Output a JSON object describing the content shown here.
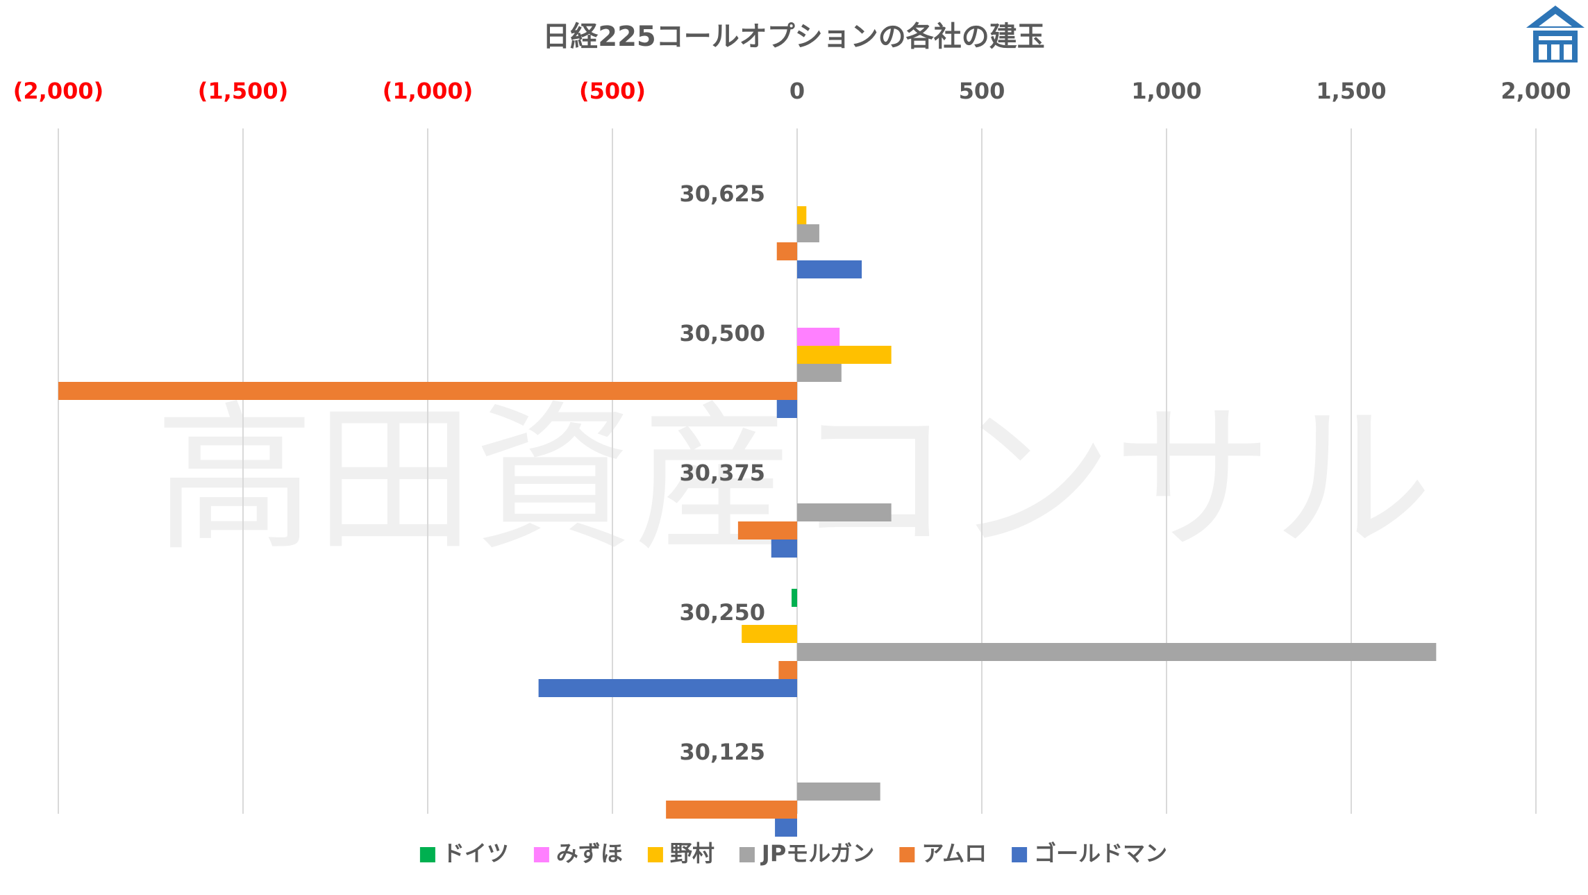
{
  "chart_data": {
    "type": "bar",
    "orientation": "horizontal",
    "title": "日経225コールオプションの各社の建玉",
    "watermark": "高田資産コンサル",
    "xlim": [
      -2000,
      2000
    ],
    "x_ticks": [
      -2000,
      -1500,
      -1000,
      -500,
      0,
      500,
      1000,
      1500,
      2000
    ],
    "x_tick_labels": [
      "(2,000)",
      "(1,500)",
      "(1,000)",
      "(500)",
      "0",
      "500",
      "1,000",
      "1,500",
      "2,000"
    ],
    "grid": true,
    "legend_position": "bottom",
    "categories": [
      "30,625",
      "30,500",
      "30,375",
      "30,250",
      "30,125"
    ],
    "series": [
      {
        "name": "ドイツ",
        "color": "#00B050",
        "values": [
          0,
          0,
          0,
          -15,
          0
        ]
      },
      {
        "name": "みずほ",
        "color": "#FF80FF",
        "values": [
          0,
          115,
          0,
          0,
          0
        ]
      },
      {
        "name": "野村",
        "color": "#FFC000",
        "values": [
          25,
          255,
          0,
          -150,
          0
        ]
      },
      {
        "name": "JPモルガン",
        "color": "#A5A5A5",
        "values": [
          60,
          120,
          255,
          1730,
          225
        ]
      },
      {
        "name": "アムロ",
        "color": "#ED7D31",
        "values": [
          -55,
          -2000,
          -160,
          -50,
          -355
        ]
      },
      {
        "name": "ゴールドマン",
        "color": "#4472C4",
        "values": [
          175,
          -55,
          -70,
          -700,
          -60
        ]
      }
    ],
    "colors": {
      "negative_tick": "#FF0000",
      "positive_tick": "#595959",
      "title": "#595959",
      "category_label": "#595959",
      "grid": "#D9D9D9"
    }
  },
  "logo": {
    "name": "house-logo-icon",
    "color": "#2E75B6"
  }
}
